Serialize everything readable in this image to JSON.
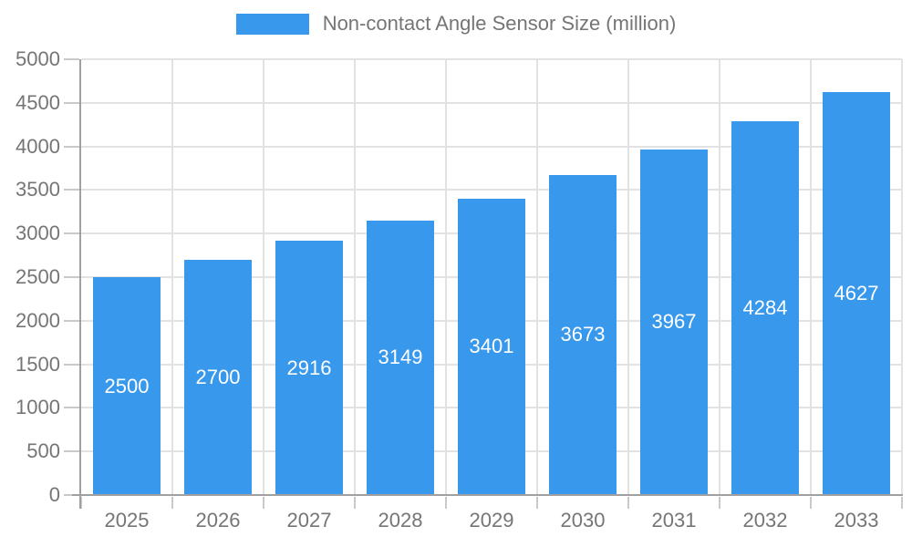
{
  "chart_data": {
    "type": "bar",
    "title": "Non-contact Angle Sensor Size (million)",
    "categories": [
      "2025",
      "2026",
      "2027",
      "2028",
      "2029",
      "2030",
      "2031",
      "2032",
      "2033"
    ],
    "series": [
      {
        "name": "Non-contact Angle Sensor Size (million)",
        "values": [
          2500,
          2700,
          2916,
          3149,
          3401,
          3673,
          3967,
          4284,
          4627
        ]
      }
    ],
    "value_labels_shown": true,
    "xlabel": "",
    "ylabel": "",
    "ylim": [
      0,
      5000
    ],
    "yticks": [
      0,
      500,
      1000,
      1500,
      2000,
      2500,
      3000,
      3500,
      4000,
      4500,
      5000
    ],
    "grid": "both",
    "legend_position": "top-center"
  },
  "colors": {
    "bar": "#3898EC",
    "grid": "#E2E2E2",
    "axis": "#A0A0A0",
    "tick": "#C9C9C9",
    "text": "#757575",
    "value_label": "#FFFFFF",
    "background": "#FFFFFF"
  }
}
